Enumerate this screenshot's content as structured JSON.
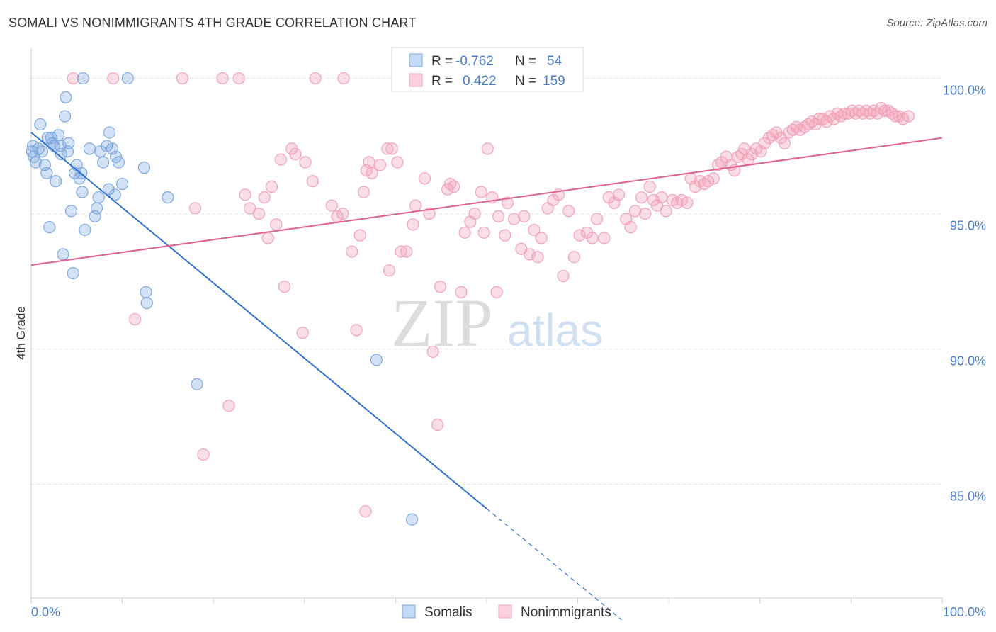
{
  "title": "SOMALI VS NONIMMIGRANTS 4TH GRADE CORRELATION CHART",
  "source": "Source: ZipAtlas.com",
  "watermark": {
    "part1": "ZIP",
    "part2": "atlas"
  },
  "legend_box": [
    {
      "r_label": "R =",
      "r_value": "-0.762",
      "n_label": "N =",
      "n_value": "54"
    },
    {
      "r_label": "R =",
      "r_value": "0.422",
      "n_label": "N =",
      "n_value": "159"
    }
  ],
  "colors": {
    "somalis": "#7fa8e0",
    "somalis_line": "#2f72d6",
    "nonimmigrants": "#f2a0b8",
    "nonimmigrants_line": "#e06090",
    "tick": "#4a7cc9"
  },
  "chart_data": {
    "type": "scatter",
    "xlabel": "",
    "ylabel": "4th Grade",
    "xlim": [
      0,
      100
    ],
    "ylim": [
      80.8,
      100.8
    ],
    "x_tick_labels": [
      {
        "value": 0,
        "label": "0.0%"
      },
      {
        "value": 100,
        "label": "100.0%"
      }
    ],
    "y_tick_labels": [
      {
        "value": 85,
        "label": "85.0%"
      },
      {
        "value": 90,
        "label": "90.0%"
      },
      {
        "value": 95,
        "label": "95.0%"
      },
      {
        "value": 100,
        "label": "100.0%"
      }
    ],
    "grid": true,
    "legend_position": "bottom",
    "series": [
      {
        "name": "Somalis",
        "points": [
          [
            0.2,
            97.5
          ],
          [
            0.3,
            97.1
          ],
          [
            0.5,
            96.9
          ],
          [
            0.8,
            97.4
          ],
          [
            1.0,
            98.3
          ],
          [
            1.2,
            97.3
          ],
          [
            1.5,
            96.8
          ],
          [
            1.7,
            96.5
          ],
          [
            1.8,
            97.8
          ],
          [
            2.0,
            94.5
          ],
          [
            2.3,
            97.6
          ],
          [
            2.5,
            97.5
          ],
          [
            2.7,
            96.2
          ],
          [
            3.0,
            97.9
          ],
          [
            3.2,
            97.5
          ],
          [
            3.5,
            93.5
          ],
          [
            3.7,
            98.6
          ],
          [
            3.8,
            99.3
          ],
          [
            4.0,
            97.3
          ],
          [
            4.1,
            97.6
          ],
          [
            4.4,
            95.1
          ],
          [
            4.6,
            92.8
          ],
          [
            4.8,
            96.5
          ],
          [
            5.0,
            96.8
          ],
          [
            5.3,
            96.3
          ],
          [
            5.6,
            95.8
          ],
          [
            5.9,
            94.4
          ],
          [
            6.4,
            97.4
          ],
          [
            7.0,
            94.9
          ],
          [
            7.2,
            95.2
          ],
          [
            7.4,
            95.6
          ],
          [
            7.9,
            96.9
          ],
          [
            8.3,
            97.5
          ],
          [
            8.5,
            95.9
          ],
          [
            8.6,
            98.0
          ],
          [
            8.9,
            97.4
          ],
          [
            9.2,
            95.7
          ],
          [
            9.3,
            97.1
          ],
          [
            9.6,
            96.9
          ],
          [
            10.0,
            96.1
          ],
          [
            5.7,
            100.0
          ],
          [
            10.6,
            100.0
          ],
          [
            12.4,
            96.7
          ],
          [
            12.6,
            92.1
          ],
          [
            12.7,
            91.7
          ],
          [
            15.0,
            95.6
          ],
          [
            18.2,
            88.7
          ],
          [
            37.9,
            89.6
          ],
          [
            41.8,
            83.7
          ],
          [
            0.1,
            97.3
          ],
          [
            2.2,
            97.8
          ],
          [
            3.3,
            97.2
          ],
          [
            7.6,
            97.3
          ],
          [
            5.5,
            96.5
          ]
        ]
      },
      {
        "name": "Nonimmigrants",
        "points": [
          [
            4.6,
            100.0
          ],
          [
            9.0,
            100.0
          ],
          [
            11.4,
            91.1
          ],
          [
            16.6,
            100.0
          ],
          [
            18.9,
            86.1
          ],
          [
            21.0,
            100.0
          ],
          [
            21.7,
            87.9
          ],
          [
            22.8,
            100.0
          ],
          [
            23.5,
            95.7
          ],
          [
            24.0,
            95.2
          ],
          [
            25.0,
            95.0
          ],
          [
            25.6,
            95.6
          ],
          [
            26.0,
            94.1
          ],
          [
            26.4,
            96.0
          ],
          [
            26.9,
            94.6
          ],
          [
            27.4,
            97.0
          ],
          [
            27.8,
            92.3
          ],
          [
            28.6,
            97.4
          ],
          [
            29.0,
            97.2
          ],
          [
            29.8,
            90.6
          ],
          [
            30.1,
            96.9
          ],
          [
            30.9,
            96.2
          ],
          [
            31.2,
            100.0
          ],
          [
            33.0,
            95.3
          ],
          [
            33.6,
            94.9
          ],
          [
            34.2,
            95.0
          ],
          [
            34.3,
            100.0
          ],
          [
            35.2,
            93.6
          ],
          [
            35.7,
            90.7
          ],
          [
            36.1,
            94.2
          ],
          [
            36.5,
            95.8
          ],
          [
            36.8,
            96.6
          ],
          [
            37.1,
            96.9
          ],
          [
            37.4,
            96.5
          ],
          [
            38.3,
            96.8
          ],
          [
            39.1,
            97.4
          ],
          [
            39.3,
            92.9
          ],
          [
            39.6,
            97.4
          ],
          [
            40.2,
            96.9
          ],
          [
            40.6,
            93.6
          ],
          [
            41.2,
            93.6
          ],
          [
            41.9,
            94.6
          ],
          [
            42.2,
            95.3
          ],
          [
            43.2,
            96.3
          ],
          [
            43.7,
            95.0
          ],
          [
            44.1,
            89.9
          ],
          [
            44.6,
            87.2
          ],
          [
            44.9,
            92.3
          ],
          [
            45.7,
            95.9
          ],
          [
            46.0,
            96.1
          ],
          [
            46.4,
            96.0
          ],
          [
            47.2,
            92.1
          ],
          [
            47.6,
            94.3
          ],
          [
            48.2,
            94.7
          ],
          [
            48.7,
            95.0
          ],
          [
            49.4,
            95.8
          ],
          [
            49.7,
            94.3
          ],
          [
            50.1,
            97.4
          ],
          [
            50.6,
            95.6
          ],
          [
            51.1,
            92.1
          ],
          [
            51.3,
            94.9
          ],
          [
            52.0,
            94.2
          ],
          [
            52.3,
            95.4
          ],
          [
            53.0,
            94.8
          ],
          [
            53.8,
            93.7
          ],
          [
            54.1,
            94.9
          ],
          [
            54.7,
            93.5
          ],
          [
            55.2,
            94.4
          ],
          [
            55.6,
            93.4
          ],
          [
            56.0,
            94.1
          ],
          [
            56.7,
            95.2
          ],
          [
            57.3,
            95.5
          ],
          [
            57.9,
            95.7
          ],
          [
            58.4,
            92.7
          ],
          [
            59.0,
            95.1
          ],
          [
            59.6,
            93.4
          ],
          [
            60.2,
            94.2
          ],
          [
            61.0,
            94.3
          ],
          [
            61.6,
            94.1
          ],
          [
            62.1,
            94.8
          ],
          [
            62.9,
            94.1
          ],
          [
            63.4,
            95.6
          ],
          [
            64.0,
            95.4
          ],
          [
            64.5,
            95.7
          ],
          [
            65.3,
            94.8
          ],
          [
            65.8,
            94.5
          ],
          [
            66.3,
            95.1
          ],
          [
            67.0,
            95.6
          ],
          [
            67.4,
            95.0
          ],
          [
            67.9,
            96.0
          ],
          [
            68.3,
            95.5
          ],
          [
            68.7,
            95.3
          ],
          [
            69.2,
            95.6
          ],
          [
            69.7,
            95.1
          ],
          [
            70.4,
            95.5
          ],
          [
            70.9,
            95.4
          ],
          [
            71.4,
            95.5
          ],
          [
            72.0,
            95.4
          ],
          [
            72.4,
            96.3
          ],
          [
            72.9,
            96.0
          ],
          [
            73.4,
            96.2
          ],
          [
            73.9,
            96.1
          ],
          [
            74.3,
            96.2
          ],
          [
            74.9,
            96.3
          ],
          [
            75.4,
            96.8
          ],
          [
            75.8,
            96.9
          ],
          [
            76.3,
            97.1
          ],
          [
            76.8,
            96.8
          ],
          [
            77.2,
            96.6
          ],
          [
            77.6,
            97.1
          ],
          [
            78.0,
            97.2
          ],
          [
            78.3,
            97.4
          ],
          [
            78.7,
            97.0
          ],
          [
            79.1,
            97.2
          ],
          [
            79.6,
            97.4
          ],
          [
            80.1,
            97.3
          ],
          [
            80.5,
            97.6
          ],
          [
            81.0,
            97.8
          ],
          [
            81.4,
            97.9
          ],
          [
            81.8,
            98.0
          ],
          [
            82.3,
            97.8
          ],
          [
            82.7,
            97.6
          ],
          [
            83.2,
            98.0
          ],
          [
            83.6,
            98.1
          ],
          [
            84.0,
            98.2
          ],
          [
            84.4,
            98.1
          ],
          [
            84.9,
            98.2
          ],
          [
            85.3,
            98.3
          ],
          [
            85.7,
            98.4
          ],
          [
            86.1,
            98.3
          ],
          [
            86.5,
            98.5
          ],
          [
            86.9,
            98.5
          ],
          [
            87.3,
            98.4
          ],
          [
            87.7,
            98.6
          ],
          [
            88.1,
            98.5
          ],
          [
            88.5,
            98.7
          ],
          [
            88.9,
            98.6
          ],
          [
            89.3,
            98.7
          ],
          [
            89.7,
            98.7
          ],
          [
            90.1,
            98.8
          ],
          [
            90.5,
            98.7
          ],
          [
            90.9,
            98.8
          ],
          [
            91.3,
            98.7
          ],
          [
            91.7,
            98.8
          ],
          [
            92.1,
            98.7
          ],
          [
            92.5,
            98.8
          ],
          [
            92.9,
            98.7
          ],
          [
            93.3,
            98.9
          ],
          [
            93.7,
            98.8
          ],
          [
            94.1,
            98.8
          ],
          [
            94.5,
            98.7
          ],
          [
            94.9,
            98.6
          ],
          [
            95.3,
            98.6
          ],
          [
            95.7,
            98.5
          ],
          [
            96.3,
            98.6
          ],
          [
            18.0,
            95.2
          ],
          [
            36.7,
            84.0
          ]
        ]
      }
    ],
    "trend_lines": [
      {
        "series": "Somalis",
        "solid": [
          [
            0.0,
            98.0
          ],
          [
            50.0,
            84.1
          ]
        ],
        "dashed": [
          [
            50.0,
            84.1
          ],
          [
            64.8,
            80.0
          ]
        ]
      },
      {
        "series": "Nonimmigrants",
        "solid": [
          [
            0.0,
            93.1
          ],
          [
            100.0,
            97.8
          ]
        ]
      }
    ]
  },
  "bottom_legend": [
    {
      "label": "Somalis"
    },
    {
      "label": "Nonimmigrants"
    }
  ]
}
